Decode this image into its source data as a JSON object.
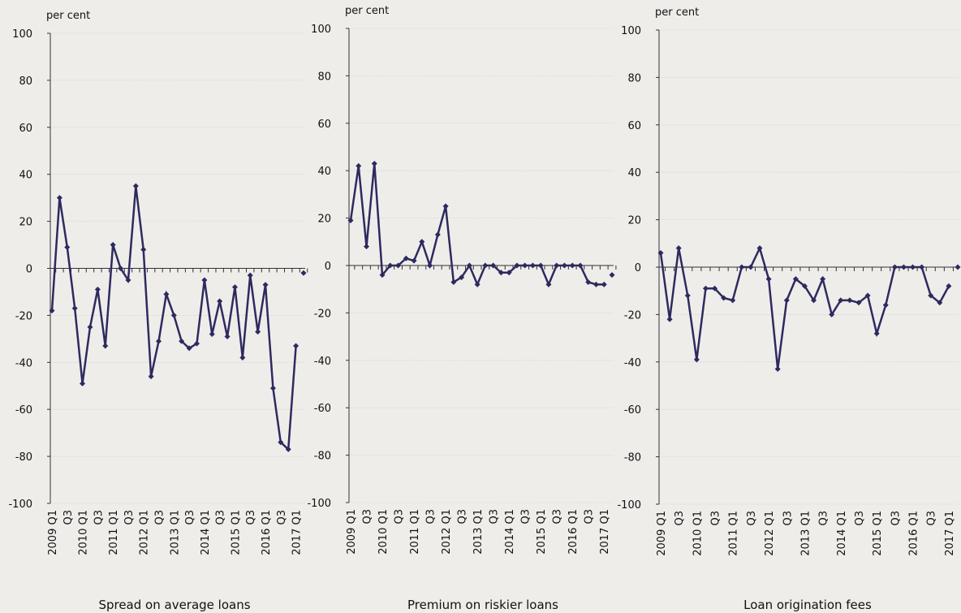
{
  "chart_data": [
    {
      "type": "line",
      "title": "Spread on average loans",
      "y_label": "per cent",
      "categories": [
        "2009 Q1",
        null,
        "Q3",
        null,
        "2010 Q1",
        null,
        "Q3",
        null,
        "2011 Q1",
        null,
        "Q3",
        null,
        "2012 Q1",
        null,
        "Q3",
        null,
        "2013 Q1",
        null,
        "Q3",
        null,
        "2014 Q1",
        null,
        "Q3",
        null,
        "2015 Q1",
        null,
        "Q3",
        null,
        "2016 Q1",
        null,
        "Q3",
        null,
        "2017 Q1",
        null
      ],
      "series": [
        {
          "color": "#2e2a5f",
          "values": [
            -18,
            30,
            9,
            -17,
            -49,
            -25,
            -9,
            -33,
            10,
            0,
            -5,
            35,
            8,
            -46,
            -31,
            -11,
            -20,
            -31,
            -34,
            -32,
            -5,
            -28,
            -14,
            -29,
            -8,
            -38,
            -3,
            -27,
            -7,
            -51,
            -74,
            -77,
            -33,
            null
          ]
        },
        {
          "color": "#2e2a5f",
          "values": [
            null,
            null,
            null,
            null,
            null,
            null,
            null,
            null,
            null,
            null,
            null,
            null,
            null,
            null,
            null,
            null,
            null,
            null,
            null,
            null,
            null,
            null,
            null,
            null,
            null,
            null,
            null,
            null,
            null,
            null,
            null,
            null,
            null,
            -2
          ]
        }
      ],
      "ylim": [
        -100,
        100
      ],
      "yticks": [
        -100,
        -80,
        -60,
        -40,
        -20,
        0,
        20,
        40,
        60,
        80,
        100
      ],
      "grid": true
    },
    {
      "type": "line",
      "title": "Premium on riskier loans",
      "y_label": "per cent",
      "categories": [
        "2009 Q1",
        null,
        "Q3",
        null,
        "2010 Q1",
        null,
        "Q3",
        null,
        "2011 Q1",
        null,
        "Q3",
        null,
        "2012 Q1",
        null,
        "Q3",
        null,
        "2013 Q1",
        null,
        "Q3",
        null,
        "2014 Q1",
        null,
        "Q3",
        null,
        "2015 Q1",
        null,
        "Q3",
        null,
        "2016 Q1",
        null,
        "Q3",
        null,
        "2017 Q1",
        null
      ],
      "series": [
        {
          "color": "#2e2a5f",
          "values": [
            19,
            42,
            8,
            43,
            -4,
            0,
            0,
            3,
            2,
            10,
            0,
            13,
            25,
            -7,
            -5,
            0,
            -8,
            0,
            0,
            -3,
            -3,
            0,
            0,
            0,
            0,
            -8,
            0,
            0,
            0,
            0,
            -7,
            -8,
            -8,
            null
          ]
        },
        {
          "color": "#2e2a5f",
          "values": [
            null,
            null,
            null,
            null,
            null,
            null,
            null,
            null,
            null,
            null,
            null,
            null,
            null,
            null,
            null,
            null,
            null,
            null,
            null,
            null,
            null,
            null,
            null,
            null,
            null,
            null,
            null,
            null,
            null,
            null,
            null,
            null,
            null,
            -4
          ]
        }
      ],
      "ylim": [
        -100,
        100
      ],
      "yticks": [
        -100,
        -80,
        -60,
        -40,
        -20,
        0,
        20,
        40,
        60,
        80,
        100
      ],
      "grid": true
    },
    {
      "type": "line",
      "title": "Loan origination fees",
      "y_label": "per cent",
      "categories": [
        "2009 Q1",
        null,
        "Q3",
        null,
        "2010 Q1",
        null,
        "Q3",
        null,
        "2011 Q1",
        null,
        "Q3",
        null,
        "2012 Q1",
        null,
        "Q3",
        null,
        "2013 Q1",
        null,
        "Q3",
        null,
        "2014 Q1",
        null,
        "Q3",
        null,
        "2015 Q1",
        null,
        "Q3",
        null,
        "2016 Q1",
        null,
        "Q3",
        null,
        "2017 Q1",
        null
      ],
      "series": [
        {
          "color": "#2e2a5f",
          "values": [
            6,
            -22,
            8,
            -12,
            -39,
            -9,
            -9,
            -13,
            -14,
            0,
            0,
            8,
            -5,
            -43,
            -14,
            -5,
            -8,
            -14,
            -5,
            -20,
            -14,
            -14,
            -15,
            -12,
            -28,
            -16,
            0,
            0,
            0,
            0,
            -12,
            -15,
            -8,
            null
          ]
        },
        {
          "color": "#2e2a5f",
          "values": [
            null,
            null,
            null,
            null,
            null,
            null,
            null,
            null,
            null,
            null,
            null,
            null,
            null,
            null,
            null,
            null,
            null,
            null,
            null,
            null,
            null,
            null,
            null,
            null,
            null,
            null,
            null,
            null,
            null,
            null,
            null,
            null,
            null,
            0
          ]
        }
      ],
      "ylim": [
        -100,
        100
      ],
      "yticks": [
        -100,
        -80,
        -60,
        -40,
        -20,
        0,
        20,
        40,
        60,
        80,
        100
      ],
      "grid": true
    }
  ]
}
